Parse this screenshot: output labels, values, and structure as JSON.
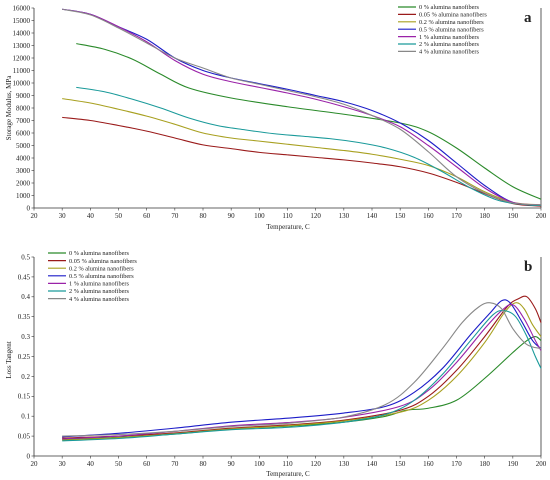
{
  "chart_data": [
    {
      "type": "line",
      "panel_label": "a",
      "xlabel": "Temperature, C",
      "ylabel": "Storage Modulus, MPa",
      "xlim": [
        20,
        200
      ],
      "ylim": [
        0,
        16000
      ],
      "xticks": [
        "20",
        "30",
        "40",
        "50",
        "60",
        "70",
        "80",
        "90",
        "100",
        "110",
        "120",
        "130",
        "140",
        "150",
        "160",
        "170",
        "180",
        "190",
        "200"
      ],
      "yticks": [
        "0",
        "1000",
        "2000",
        "3000",
        "4000",
        "5000",
        "6000",
        "7000",
        "8000",
        "9000",
        "10000",
        "11000",
        "12000",
        "13000",
        "14000",
        "15000",
        "16000"
      ],
      "legend_position": "top-right",
      "series": [
        {
          "name": "0 % alumina nanofibers",
          "color": "#2a8a2a",
          "points": [
            [
              35,
              13150
            ],
            [
              45,
              12700
            ],
            [
              55,
              11900
            ],
            [
              65,
              10700
            ],
            [
              75,
              9600
            ],
            [
              90,
              8800
            ],
            [
              110,
              8100
            ],
            [
              130,
              7500
            ],
            [
              150,
              6800
            ],
            [
              160,
              6100
            ],
            [
              170,
              4800
            ],
            [
              180,
              3200
            ],
            [
              190,
              1700
            ],
            [
              200,
              700
            ]
          ]
        },
        {
          "name": "0.05 % alumina nanofibers",
          "color": "#9a1a1a",
          "points": [
            [
              30,
              7250
            ],
            [
              40,
              7000
            ],
            [
              50,
              6600
            ],
            [
              60,
              6150
            ],
            [
              70,
              5600
            ],
            [
              80,
              5050
            ],
            [
              90,
              4750
            ],
            [
              100,
              4450
            ],
            [
              110,
              4250
            ],
            [
              120,
              4050
            ],
            [
              130,
              3850
            ],
            [
              140,
              3600
            ],
            [
              150,
              3300
            ],
            [
              160,
              2800
            ],
            [
              170,
              2050
            ],
            [
              180,
              1150
            ],
            [
              190,
              350
            ],
            [
              200,
              150
            ]
          ]
        },
        {
          "name": "0.2 % alumina nanofibers",
          "color": "#a8a020",
          "points": [
            [
              30,
              8750
            ],
            [
              40,
              8400
            ],
            [
              50,
              7900
            ],
            [
              60,
              7350
            ],
            [
              70,
              6700
            ],
            [
              80,
              6000
            ],
            [
              90,
              5600
            ],
            [
              100,
              5350
            ],
            [
              110,
              5100
            ],
            [
              120,
              4850
            ],
            [
              130,
              4600
            ],
            [
              140,
              4300
            ],
            [
              150,
              3900
            ],
            [
              160,
              3400
            ],
            [
              170,
              2500
            ],
            [
              180,
              1300
            ],
            [
              190,
              450
            ],
            [
              200,
              250
            ]
          ]
        },
        {
          "name": "0.5 % alumina nanofibers",
          "color": "#1c1cc8",
          "points": [
            [
              30,
              15900
            ],
            [
              40,
              15500
            ],
            [
              50,
              14500
            ],
            [
              60,
              13500
            ],
            [
              70,
              12000
            ],
            [
              80,
              11000
            ],
            [
              90,
              10400
            ],
            [
              100,
              9950
            ],
            [
              110,
              9500
            ],
            [
              120,
              9000
            ],
            [
              130,
              8500
            ],
            [
              140,
              7800
            ],
            [
              150,
              6800
            ],
            [
              160,
              5400
            ],
            [
              170,
              3600
            ],
            [
              180,
              1800
            ],
            [
              190,
              450
            ],
            [
              200,
              200
            ]
          ]
        },
        {
          "name": "1 % alumina nanofibers",
          "color": "#9a22a8",
          "points": [
            [
              30,
              15900
            ],
            [
              40,
              15500
            ],
            [
              50,
              14500
            ],
            [
              60,
              13300
            ],
            [
              70,
              11800
            ],
            [
              80,
              10700
            ],
            [
              90,
              10100
            ],
            [
              100,
              9650
            ],
            [
              110,
              9200
            ],
            [
              120,
              8700
            ],
            [
              130,
              8100
            ],
            [
              140,
              7400
            ],
            [
              150,
              6500
            ],
            [
              160,
              5000
            ],
            [
              170,
              3300
            ],
            [
              180,
              1600
            ],
            [
              190,
              450
            ],
            [
              200,
              250
            ]
          ]
        },
        {
          "name": "2 % alumina nanofibers",
          "color": "#1a9a9a",
          "points": [
            [
              35,
              9650
            ],
            [
              45,
              9300
            ],
            [
              55,
              8700
            ],
            [
              65,
              8000
            ],
            [
              75,
              7200
            ],
            [
              85,
              6600
            ],
            [
              95,
              6250
            ],
            [
              105,
              5950
            ],
            [
              115,
              5750
            ],
            [
              125,
              5550
            ],
            [
              135,
              5250
            ],
            [
              145,
              4800
            ],
            [
              155,
              4050
            ],
            [
              165,
              2900
            ],
            [
              175,
              1600
            ],
            [
              185,
              600
            ],
            [
              195,
              250
            ],
            [
              200,
              200
            ]
          ]
        },
        {
          "name": "4 % alumina nanofibers",
          "color": "#888888",
          "points": [
            [
              30,
              15900
            ],
            [
              40,
              15450
            ],
            [
              50,
              14400
            ],
            [
              60,
              13200
            ],
            [
              70,
              12000
            ],
            [
              80,
              11200
            ],
            [
              90,
              10400
            ],
            [
              100,
              9900
            ],
            [
              110,
              9400
            ],
            [
              120,
              8900
            ],
            [
              130,
              8300
            ],
            [
              140,
              7400
            ],
            [
              150,
              6300
            ],
            [
              160,
              4500
            ],
            [
              170,
              2500
            ],
            [
              180,
              1200
            ],
            [
              190,
              400
            ],
            [
              200,
              250
            ]
          ]
        }
      ]
    },
    {
      "type": "line",
      "panel_label": "b",
      "xlabel": "Temperature, C",
      "ylabel": "Loss Tangent",
      "xlim": [
        20,
        200
      ],
      "ylim": [
        0,
        0.5
      ],
      "xticks": [
        "20",
        "30",
        "40",
        "50",
        "60",
        "70",
        "80",
        "90",
        "100",
        "110",
        "120",
        "130",
        "140",
        "150",
        "160",
        "170",
        "180",
        "190",
        "200"
      ],
      "yticks": [
        "0",
        "0.05",
        "0.1",
        "0.15",
        "0.2",
        "0.25",
        "0.3",
        "0.35",
        "0.4",
        "0.45",
        "0.5"
      ],
      "legend_position": "top-left",
      "series": [
        {
          "name": "0 % alumina nanofibers",
          "color": "#2a8a2a",
          "points": [
            [
              30,
              0.042
            ],
            [
              50,
              0.047
            ],
            [
              70,
              0.055
            ],
            [
              90,
              0.068
            ],
            [
              110,
              0.075
            ],
            [
              130,
              0.085
            ],
            [
              145,
              0.1
            ],
            [
              152,
              0.115
            ],
            [
              160,
              0.12
            ],
            [
              170,
              0.14
            ],
            [
              180,
              0.195
            ],
            [
              190,
              0.26
            ],
            [
              195,
              0.29
            ],
            [
              198,
              0.3
            ],
            [
              200,
              0.29
            ]
          ]
        },
        {
          "name": "0.05 % alumina nanofibers",
          "color": "#9a1a1a",
          "points": [
            [
              30,
              0.045
            ],
            [
              50,
              0.05
            ],
            [
              70,
              0.058
            ],
            [
              90,
              0.07
            ],
            [
              110,
              0.078
            ],
            [
              130,
              0.09
            ],
            [
              150,
              0.115
            ],
            [
              160,
              0.15
            ],
            [
              170,
              0.215
            ],
            [
              180,
              0.3
            ],
            [
              188,
              0.375
            ],
            [
              192,
              0.395
            ],
            [
              195,
              0.4
            ],
            [
              198,
              0.37
            ],
            [
              200,
              0.335
            ]
          ]
        },
        {
          "name": "0.2 % alumina nanofibers",
          "color": "#a8a020",
          "points": [
            [
              30,
              0.04
            ],
            [
              50,
              0.046
            ],
            [
              70,
              0.056
            ],
            [
              90,
              0.068
            ],
            [
              110,
              0.076
            ],
            [
              130,
              0.088
            ],
            [
              150,
              0.11
            ],
            [
              160,
              0.14
            ],
            [
              170,
              0.2
            ],
            [
              180,
              0.285
            ],
            [
              187,
              0.36
            ],
            [
              191,
              0.385
            ],
            [
              194,
              0.37
            ],
            [
              197,
              0.33
            ],
            [
              200,
              0.3
            ]
          ]
        },
        {
          "name": "0.5 % alumina nanofibers",
          "color": "#1c1cc8",
          "points": [
            [
              30,
              0.048
            ],
            [
              50,
              0.057
            ],
            [
              70,
              0.07
            ],
            [
              90,
              0.085
            ],
            [
              110,
              0.095
            ],
            [
              130,
              0.108
            ],
            [
              145,
              0.125
            ],
            [
              155,
              0.16
            ],
            [
              165,
              0.22
            ],
            [
              175,
              0.305
            ],
            [
              182,
              0.36
            ],
            [
              186,
              0.39
            ],
            [
              189,
              0.385
            ],
            [
              193,
              0.34
            ],
            [
              197,
              0.29
            ],
            [
              200,
              0.27
            ]
          ]
        },
        {
          "name": "1 % alumina nanofibers",
          "color": "#9a22a8",
          "points": [
            [
              30,
              0.043
            ],
            [
              50,
              0.05
            ],
            [
              70,
              0.062
            ],
            [
              90,
              0.076
            ],
            [
              110,
              0.084
            ],
            [
              130,
              0.097
            ],
            [
              150,
              0.125
            ],
            [
              160,
              0.165
            ],
            [
              170,
              0.235
            ],
            [
              180,
              0.32
            ],
            [
              186,
              0.365
            ],
            [
              190,
              0.38
            ],
            [
              194,
              0.345
            ],
            [
              198,
              0.29
            ],
            [
              200,
              0.265
            ]
          ]
        },
        {
          "name": "2 % alumina nanofibers",
          "color": "#1a9a9a",
          "points": [
            [
              30,
              0.038
            ],
            [
              50,
              0.044
            ],
            [
              70,
              0.055
            ],
            [
              90,
              0.066
            ],
            [
              110,
              0.072
            ],
            [
              130,
              0.085
            ],
            [
              145,
              0.105
            ],
            [
              155,
              0.14
            ],
            [
              165,
              0.205
            ],
            [
              175,
              0.29
            ],
            [
              183,
              0.355
            ],
            [
              187,
              0.365
            ],
            [
              191,
              0.35
            ],
            [
              195,
              0.3
            ],
            [
              198,
              0.25
            ],
            [
              200,
              0.22
            ]
          ]
        },
        {
          "name": "4 % alumina nanofibers",
          "color": "#888888",
          "points": [
            [
              30,
              0.05
            ],
            [
              50,
              0.054
            ],
            [
              70,
              0.062
            ],
            [
              90,
              0.074
            ],
            [
              110,
              0.082
            ],
            [
              130,
              0.098
            ],
            [
              145,
              0.13
            ],
            [
              155,
              0.185
            ],
            [
              165,
              0.27
            ],
            [
              172,
              0.335
            ],
            [
              178,
              0.375
            ],
            [
              182,
              0.385
            ],
            [
              186,
              0.37
            ],
            [
              190,
              0.32
            ],
            [
              195,
              0.28
            ],
            [
              200,
              0.27
            ]
          ]
        }
      ]
    }
  ]
}
